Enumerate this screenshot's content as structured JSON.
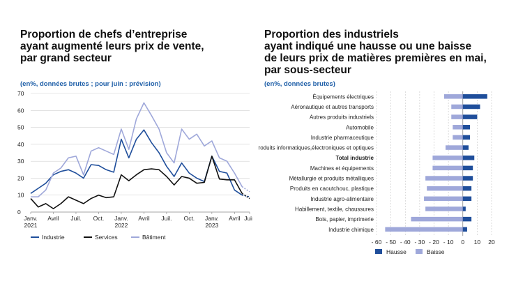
{
  "left": {
    "title_lines": [
      "Proportion de chefs d’entreprise",
      "ayant augmenté leurs prix de vente,",
      "par grand secteur"
    ],
    "subtitle": "(en%, données brutes ; pour juin : prévision)"
  },
  "right": {
    "title_lines": [
      "Proportion des industriels",
      "ayant indiqué une hausse ou une baisse",
      "de leurs prix de matières premières en mai,",
      "par sous-secteur"
    ],
    "subtitle": "(en%, données brutes)"
  },
  "chart_data": [
    {
      "type": "line",
      "title": "Proportion de chefs d’entreprise ayant augmenté leurs prix de vente, par grand secteur",
      "x": [
        "2021-01",
        "2021-02",
        "2021-03",
        "2021-04",
        "2021-05",
        "2021-06",
        "2021-07",
        "2021-08",
        "2021-09",
        "2021-10",
        "2021-11",
        "2021-12",
        "2022-01",
        "2022-02",
        "2022-03",
        "2022-04",
        "2022-05",
        "2022-06",
        "2022-07",
        "2022-08",
        "2022-09",
        "2022-10",
        "2022-11",
        "2022-12",
        "2023-01",
        "2023-02",
        "2023-03",
        "2023-04",
        "2023-05",
        "2023-06"
      ],
      "forecast_from": "2023-05",
      "x_tick_labels": [
        {
          "at": "2021-01",
          "lines": [
            "Janv.",
            "2021"
          ]
        },
        {
          "at": "2021-04",
          "lines": [
            "Avril"
          ]
        },
        {
          "at": "2021-07",
          "lines": [
            "Juil."
          ]
        },
        {
          "at": "2021-10",
          "lines": [
            "Oct."
          ]
        },
        {
          "at": "2022-01",
          "lines": [
            "Janv.",
            "2022"
          ]
        },
        {
          "at": "2022-04",
          "lines": [
            "Avril"
          ]
        },
        {
          "at": "2022-07",
          "lines": [
            "Juil."
          ]
        },
        {
          "at": "2022-10",
          "lines": [
            "Oct."
          ]
        },
        {
          "at": "2023-01",
          "lines": [
            "Janv.",
            "2023"
          ]
        },
        {
          "at": "2023-04",
          "lines": [
            "Avril"
          ]
        },
        {
          "at": "2023-06",
          "lines": [
            "Juin"
          ]
        }
      ],
      "ylim": [
        0,
        70
      ],
      "yticks": [
        0,
        10,
        20,
        30,
        40,
        50,
        60,
        70
      ],
      "grid": "horizontal",
      "legend_position": "bottom",
      "series": [
        {
          "name": "Industrie",
          "color": "#1f4e9b",
          "values": [
            11,
            14,
            17,
            22,
            24,
            25,
            23,
            20,
            28,
            27.5,
            25,
            23.5,
            43,
            32,
            43,
            48.5,
            41,
            35,
            27,
            21,
            29,
            23,
            20,
            18,
            33,
            24,
            23,
            13,
            10,
            9
          ]
        },
        {
          "name": "Services",
          "color": "#111111",
          "values": [
            8,
            3,
            5,
            2,
            5,
            9,
            7,
            5,
            8,
            10,
            8.5,
            9,
            22,
            18.5,
            22,
            25,
            25.5,
            25,
            21,
            16,
            21,
            20,
            17,
            17.5,
            33,
            19.5,
            19,
            19,
            11,
            8
          ]
        },
        {
          "name": "Bâtiment",
          "color": "#9fa8da",
          "values": [
            9,
            9,
            13,
            23,
            26,
            32,
            33,
            22,
            36,
            38,
            36,
            34,
            49,
            37,
            55,
            64.5,
            57,
            49,
            35,
            29,
            49,
            43,
            46,
            39,
            42,
            32,
            30,
            23,
            15,
            12
          ]
        }
      ]
    },
    {
      "type": "bar",
      "orientation": "horizontal",
      "title": "Proportion des industriels ayant indiqué une hausse ou une baisse de leurs prix de matières premières en mai, par sous-secteur",
      "categories": [
        "Équipements électriques",
        "Aéronautique et autres transports",
        "Autres produits industriels",
        "Automobile",
        "Industrie pharmaceutique",
        "Produits informatiques,électroniques et optiques",
        "Total industrie",
        "Machines et équipements",
        "Métallurgie et produits métalliques",
        "Produits en caoutchouc, plastique",
        "Industrie agro-alimentaire",
        "Habillement, textile, chaussures",
        "Bois, papier, imprimerie",
        "Industrie chimique"
      ],
      "bold_category": "Total industrie",
      "xlim": [
        -60,
        20
      ],
      "xticks": [
        -60,
        -50,
        -40,
        -30,
        -20,
        -10,
        0,
        10,
        20
      ],
      "xtick_labels": [
        "- 60",
        "- 50",
        "- 40",
        "- 30",
        "- 20",
        "- 10",
        "0",
        "10",
        "20"
      ],
      "grid": "vertical-dashed",
      "legend_position": "bottom",
      "series": [
        {
          "name": "Hausse",
          "color": "#1f4e9b",
          "values": [
            17,
            12,
            10,
            5,
            5,
            4,
            8,
            7,
            7,
            6,
            6,
            2,
            6,
            3
          ]
        },
        {
          "name": "Baisse",
          "color": "#9fa8da",
          "values": [
            -13,
            -8,
            -8,
            -7,
            -7,
            -12,
            -21,
            -21,
            -26,
            -25,
            -27,
            -26,
            -36,
            -54
          ]
        }
      ]
    }
  ]
}
